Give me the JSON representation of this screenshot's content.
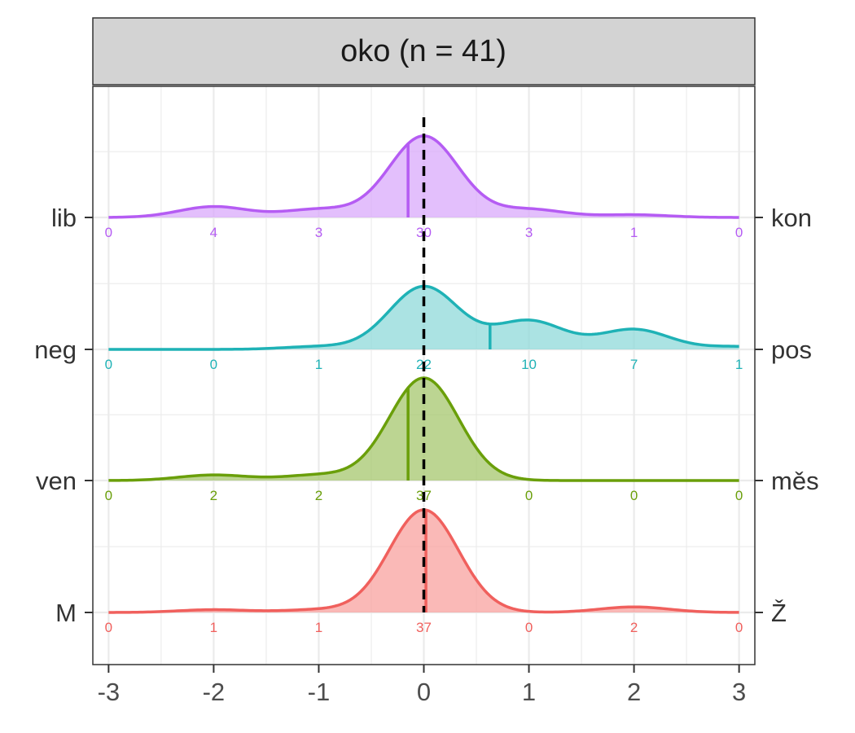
{
  "chart_data": {
    "type": "ridgeline-density",
    "title": "oko (n = 41)",
    "xlabel": "",
    "ylabel": "",
    "xlim": [
      -3.15,
      3.15
    ],
    "x_ticks": [
      -3,
      -2,
      -1,
      0,
      1,
      2,
      3
    ],
    "x_tick_labels": [
      "-3",
      "-2",
      "-1",
      "0",
      "1",
      "2",
      "3"
    ],
    "reference_line": {
      "x": 0,
      "style": "dashed",
      "color": "#000000"
    },
    "count_positions": [
      -3,
      -2,
      -1,
      0,
      1,
      2,
      3
    ],
    "series": [
      {
        "name": "M–Ž",
        "left_label": "M",
        "right_label": "Ž",
        "color": "#F0605D",
        "fill": "#F8A19F",
        "mean": 0.02,
        "counts": [
          0,
          1,
          1,
          37,
          0,
          2,
          0
        ],
        "count_labels": [
          "0",
          "1",
          "1",
          "37",
          "0",
          "2",
          "0"
        ],
        "peak_height": 0.78
      },
      {
        "name": "ven–měs",
        "left_label": "ven",
        "right_label": "měs",
        "color": "#6A9F0A",
        "fill": "#A6C76D",
        "mean": -0.15,
        "counts": [
          0,
          2,
          2,
          37,
          0,
          0,
          0
        ],
        "count_labels": [
          "0",
          "2",
          "2",
          "37",
          "0",
          "0",
          "0"
        ],
        "peak_height": 0.78
      },
      {
        "name": "neg–pos",
        "left_label": "neg",
        "right_label": "pos",
        "color": "#1FB2B6",
        "fill": "#8FD9DA",
        "mean": 0.63,
        "counts": [
          0,
          0,
          1,
          22,
          10,
          7,
          1
        ],
        "count_labels": [
          "0",
          "0",
          "1",
          "22",
          "10",
          "7",
          "1"
        ],
        "peak_height": 0.48
      },
      {
        "name": "lib–kon",
        "left_label": "lib",
        "right_label": "kon",
        "color": "#B55CF3",
        "fill": "#D9AAFB",
        "mean": -0.15,
        "counts": [
          0,
          4,
          3,
          30,
          3,
          1,
          0
        ],
        "count_labels": [
          "0",
          "4",
          "3",
          "30",
          "3",
          "1",
          "0"
        ],
        "peak_height": 0.62
      }
    ]
  }
}
